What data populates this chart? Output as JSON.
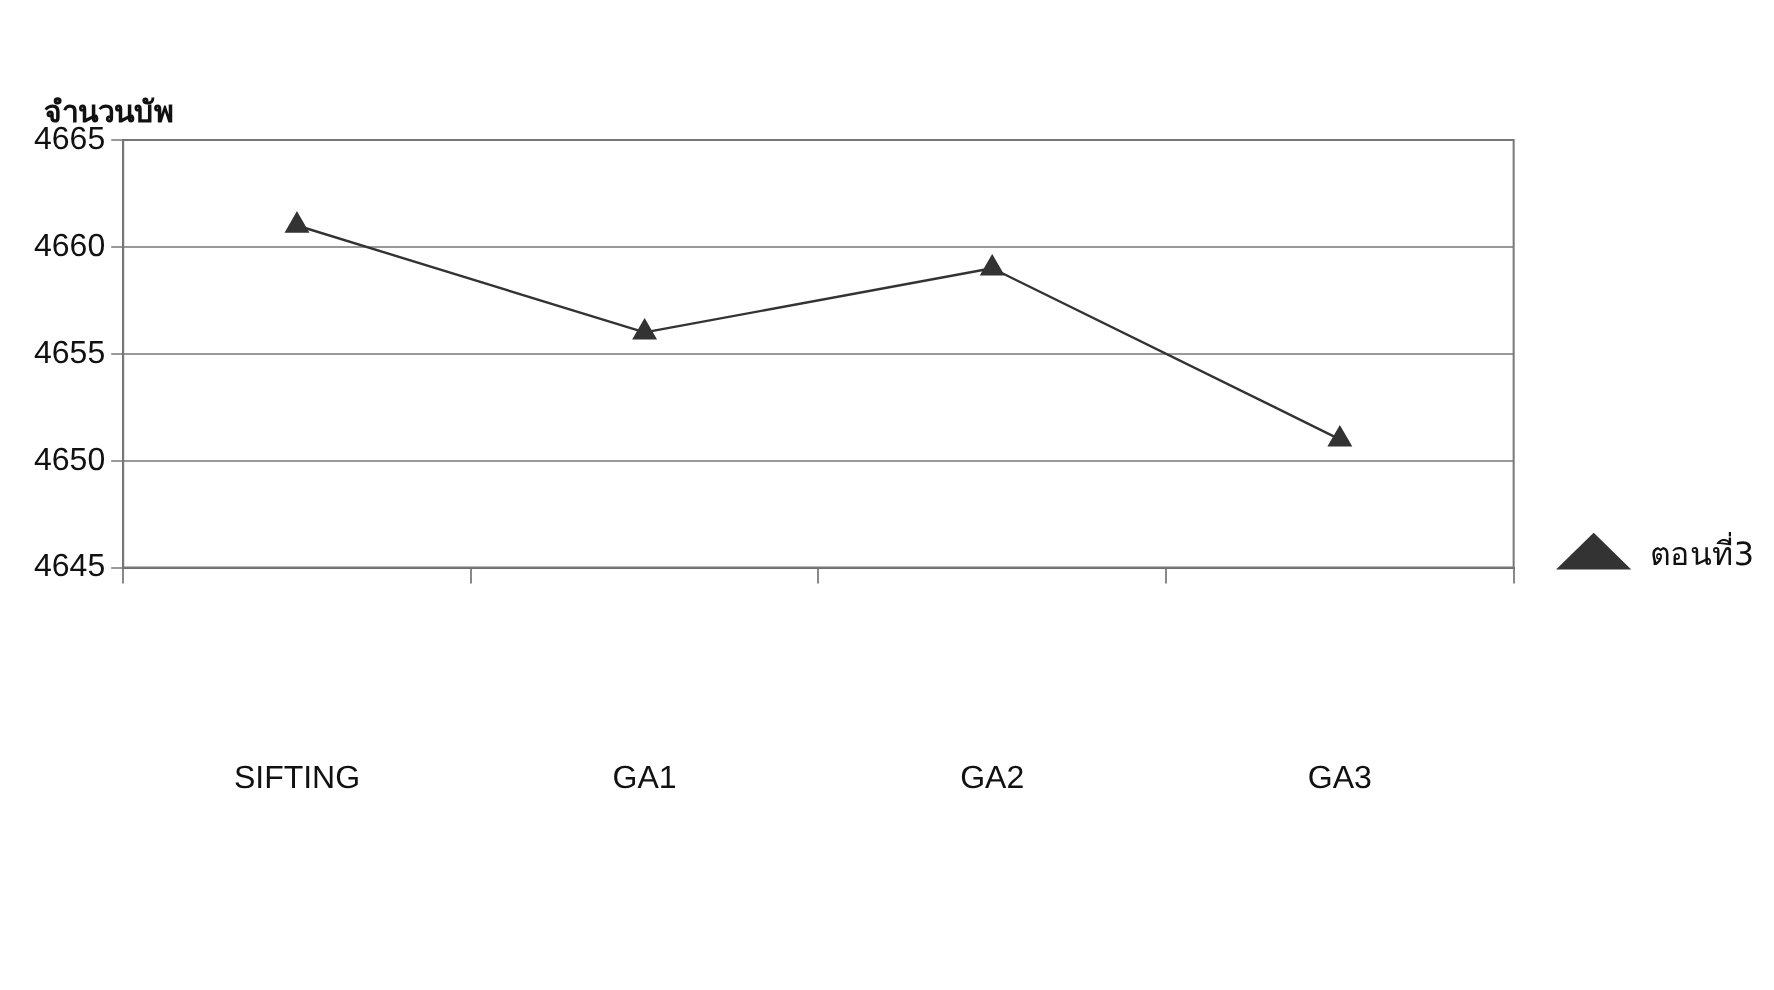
{
  "chart_data": {
    "type": "line",
    "ylabel": "จำนวนบัพ",
    "categories": [
      "SIFTING",
      "GA1",
      "GA2",
      "GA3"
    ],
    "series": [
      {
        "name": "ตอนที่3",
        "color": "#333333",
        "values": [
          4661,
          4656,
          4659,
          4651
        ]
      }
    ],
    "ylim": [
      4645,
      4665
    ],
    "yticks": [
      4645,
      4650,
      4655,
      4660,
      4665
    ],
    "grid": "y",
    "legend": "right",
    "marker": "triangle",
    "line_style": "solid"
  }
}
